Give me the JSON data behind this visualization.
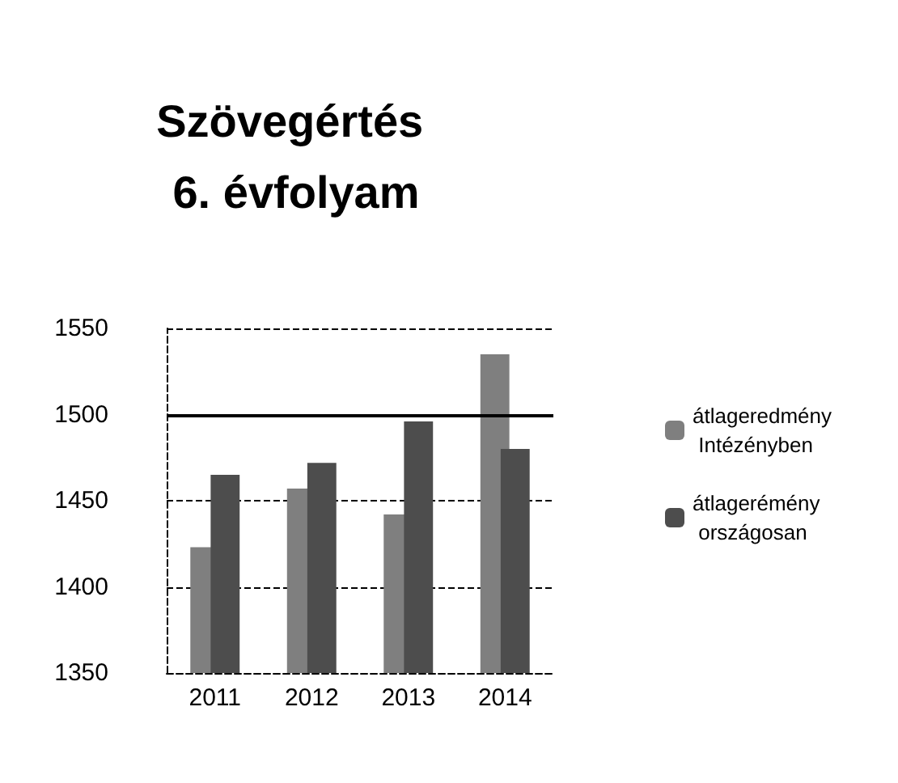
{
  "chart_data": {
    "type": "bar",
    "title": "Szövegértés 6. évfolyam",
    "categories": [
      "2011",
      "2012",
      "2013",
      "2014"
    ],
    "series": [
      {
        "name": "átlageredmény Intézényben",
        "color": "#7f7f7f",
        "values": [
          1423,
          1457,
          1442,
          1535
        ]
      },
      {
        "name": "átlagerémény országosan",
        "color": "#4d4d4d",
        "values": [
          1465,
          1472,
          1496,
          1480
        ]
      }
    ],
    "ylim": [
      1350,
      1550
    ],
    "yticks": [
      1350,
      1400,
      1450,
      1500,
      1550
    ],
    "grid": "y",
    "legend": "right",
    "ref_lines": [
      {
        "axis": "y",
        "value": 1500,
        "color": "#000000",
        "line_style": "solid"
      }
    ]
  }
}
